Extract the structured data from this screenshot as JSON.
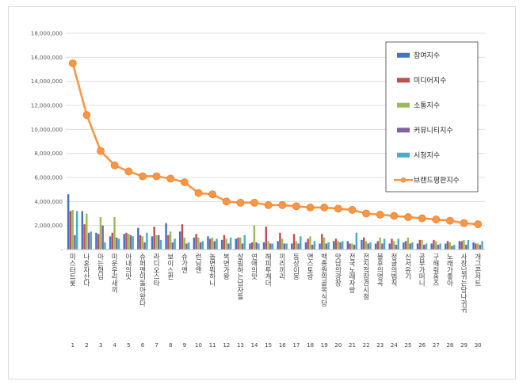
{
  "chart_data": {
    "type": "bar",
    "title": "",
    "xlabel": "",
    "ylabel": "",
    "ylim": [
      0,
      18000000
    ],
    "yticks": [
      0,
      2000000,
      4000000,
      6000000,
      8000000,
      10000000,
      12000000,
      14000000,
      16000000,
      18000000
    ],
    "ytick_labels": [
      "-",
      "2,000,000",
      "4,000,000",
      "6,000,000",
      "8,000,000",
      "10,000,000",
      "12,000,000",
      "14,000,000",
      "16,000,000",
      "18,000,000"
    ],
    "grid": true,
    "legend_position": "top-right",
    "ranks": [
      "1",
      "2",
      "3",
      "4",
      "5",
      "6",
      "7",
      "8",
      "9",
      "10",
      "11",
      "12",
      "13",
      "14",
      "15",
      "16",
      "17",
      "18",
      "19",
      "20",
      "21",
      "22",
      "23",
      "24",
      "25",
      "26",
      "27",
      "28",
      "29",
      "30"
    ],
    "categories": [
      "미스터트롯",
      "나혼자산다",
      "아는형님",
      "미운우리새끼",
      "아내의맛",
      "슈퍼맨이돌아왔다",
      "라디오스타",
      "보이스퀸",
      "슈가맨",
      "런닝맨",
      "놀면뭐하니",
      "복면가왕",
      "살림하는남자들",
      "연애의맛",
      "해피투게더",
      "끼리끼리",
      "동상이몽",
      "맨스토랑",
      "백종원의골목식당",
      "맛남의광장",
      "전국노래자랑",
      "전지적참견시점",
      "불후의명곡",
      "정글의법칙",
      "신서유기",
      "공부가머니",
      "구해줘홈즈",
      "노래가좋아",
      "사장님귀는당나귀귀",
      "개그콘서트"
    ],
    "series": [
      {
        "name": "참여지수",
        "color": "#4472c4",
        "kind": "bar",
        "values": [
          4600000,
          3200000,
          1400000,
          1100000,
          1300000,
          1800000,
          1100000,
          2200000,
          1500000,
          1000000,
          1100000,
          800000,
          900000,
          500000,
          600000,
          700000,
          500000,
          600000,
          500000,
          700000,
          700000,
          800000,
          500000,
          500000,
          600000,
          500000,
          500000,
          500000,
          700000,
          600000
        ]
      },
      {
        "name": "미디어지수",
        "color": "#c0504d",
        "kind": "bar",
        "values": [
          3200000,
          2100000,
          1300000,
          1400000,
          1400000,
          1200000,
          1900000,
          1200000,
          2100000,
          1300000,
          900000,
          1200000,
          1000000,
          600000,
          1900000,
          1400000,
          1300000,
          900000,
          1300000,
          900000,
          500000,
          1000000,
          700000,
          900000,
          700000,
          800000,
          800000,
          700000,
          700000,
          500000
        ]
      },
      {
        "name": "소통지수",
        "color": "#9bbb59",
        "kind": "bar",
        "values": [
          3300000,
          3000000,
          2700000,
          2700000,
          1300000,
          1100000,
          1200000,
          1500000,
          1000000,
          1000000,
          1000000,
          900000,
          1000000,
          2000000,
          700000,
          900000,
          700000,
          1100000,
          1000000,
          700000,
          500000,
          700000,
          1000000,
          700000,
          1000000,
          800000,
          700000,
          600000,
          800000,
          500000
        ]
      },
      {
        "name": "커뮤니티지수",
        "color": "#8064a2",
        "kind": "bar",
        "values": [
          1200000,
          1400000,
          2000000,
          1000000,
          1200000,
          600000,
          1200000,
          600000,
          500000,
          600000,
          700000,
          500000,
          500000,
          600000,
          500000,
          500000,
          500000,
          400000,
          500000,
          600000,
          400000,
          500000,
          500000,
          400000,
          500000,
          400000,
          400000,
          300000,
          400000,
          400000
        ]
      },
      {
        "name": "시청지수",
        "color": "#4bacc6",
        "kind": "bar",
        "values": [
          3200000,
          1500000,
          600000,
          900000,
          1100000,
          1400000,
          800000,
          900000,
          600000,
          700000,
          900000,
          1000000,
          1200000,
          500000,
          500000,
          500000,
          1100000,
          700000,
          600000,
          700000,
          1400000,
          600000,
          900000,
          900000,
          600000,
          500000,
          500000,
          400000,
          800000,
          700000
        ]
      },
      {
        "name": "브랜드평판지수",
        "color": "#f79646",
        "kind": "line",
        "values": [
          15500000,
          11200000,
          8200000,
          7000000,
          6500000,
          6100000,
          6100000,
          5900000,
          5600000,
          4700000,
          4600000,
          4000000,
          3900000,
          3900000,
          3700000,
          3700000,
          3600000,
          3500000,
          3500000,
          3400000,
          3300000,
          3000000,
          2900000,
          2800000,
          2700000,
          2600000,
          2500000,
          2400000,
          2200000,
          2100000
        ]
      }
    ]
  }
}
